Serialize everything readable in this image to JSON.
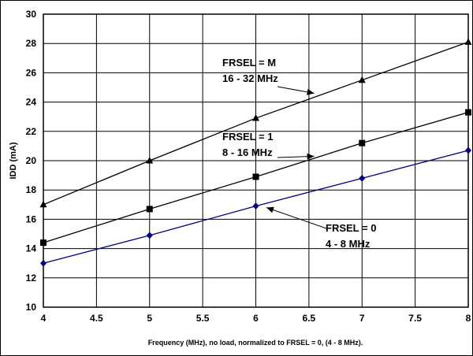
{
  "chart_data": {
    "type": "line",
    "title": "",
    "xlabel": "Frequency (MHz), no load, normalized to FRSEL = 0, (4 - 8 MHz).",
    "ylabel": "IDD (mA)",
    "xlim": [
      4,
      8
    ],
    "ylim": [
      10,
      30
    ],
    "xticks": [
      "4",
      "4.5",
      "5",
      "5.5",
      "6",
      "6.5",
      "7",
      "7.5",
      "8"
    ],
    "yticks": [
      "10",
      "12",
      "14",
      "16",
      "18",
      "20",
      "22",
      "24",
      "26",
      "28",
      "30"
    ],
    "grid": true,
    "series": [
      {
        "key": "m",
        "marker": "triangle",
        "color": "#000000",
        "x": [
          4,
          5,
          6,
          7,
          8
        ],
        "y": [
          17.0,
          20.0,
          22.9,
          25.5,
          28.1
        ]
      },
      {
        "key": "one",
        "marker": "square",
        "color": "#000000",
        "x": [
          4,
          5,
          6,
          7,
          8
        ],
        "y": [
          14.4,
          16.7,
          18.9,
          21.2,
          23.3
        ]
      },
      {
        "key": "zero",
        "marker": "diamond",
        "color": "#000080",
        "x": [
          4,
          5,
          6,
          7,
          8
        ],
        "y": [
          13.0,
          14.9,
          16.9,
          18.8,
          20.7
        ]
      }
    ],
    "annotations": [
      {
        "key": "m",
        "line1": "FRSEL = M",
        "line2": "16 - 32 MHz",
        "target_x": 6.55,
        "target_y": 24.6
      },
      {
        "key": "one",
        "line1": "FRSEL = 1",
        "line2": "8 - 16 MHz",
        "target_x": 6.55,
        "target_y": 20.3
      },
      {
        "key": "zero",
        "line1": "FRSEL = 0",
        "line2": "4 - 8 MHz",
        "target_x": 6.1,
        "target_y": 16.8
      }
    ]
  }
}
